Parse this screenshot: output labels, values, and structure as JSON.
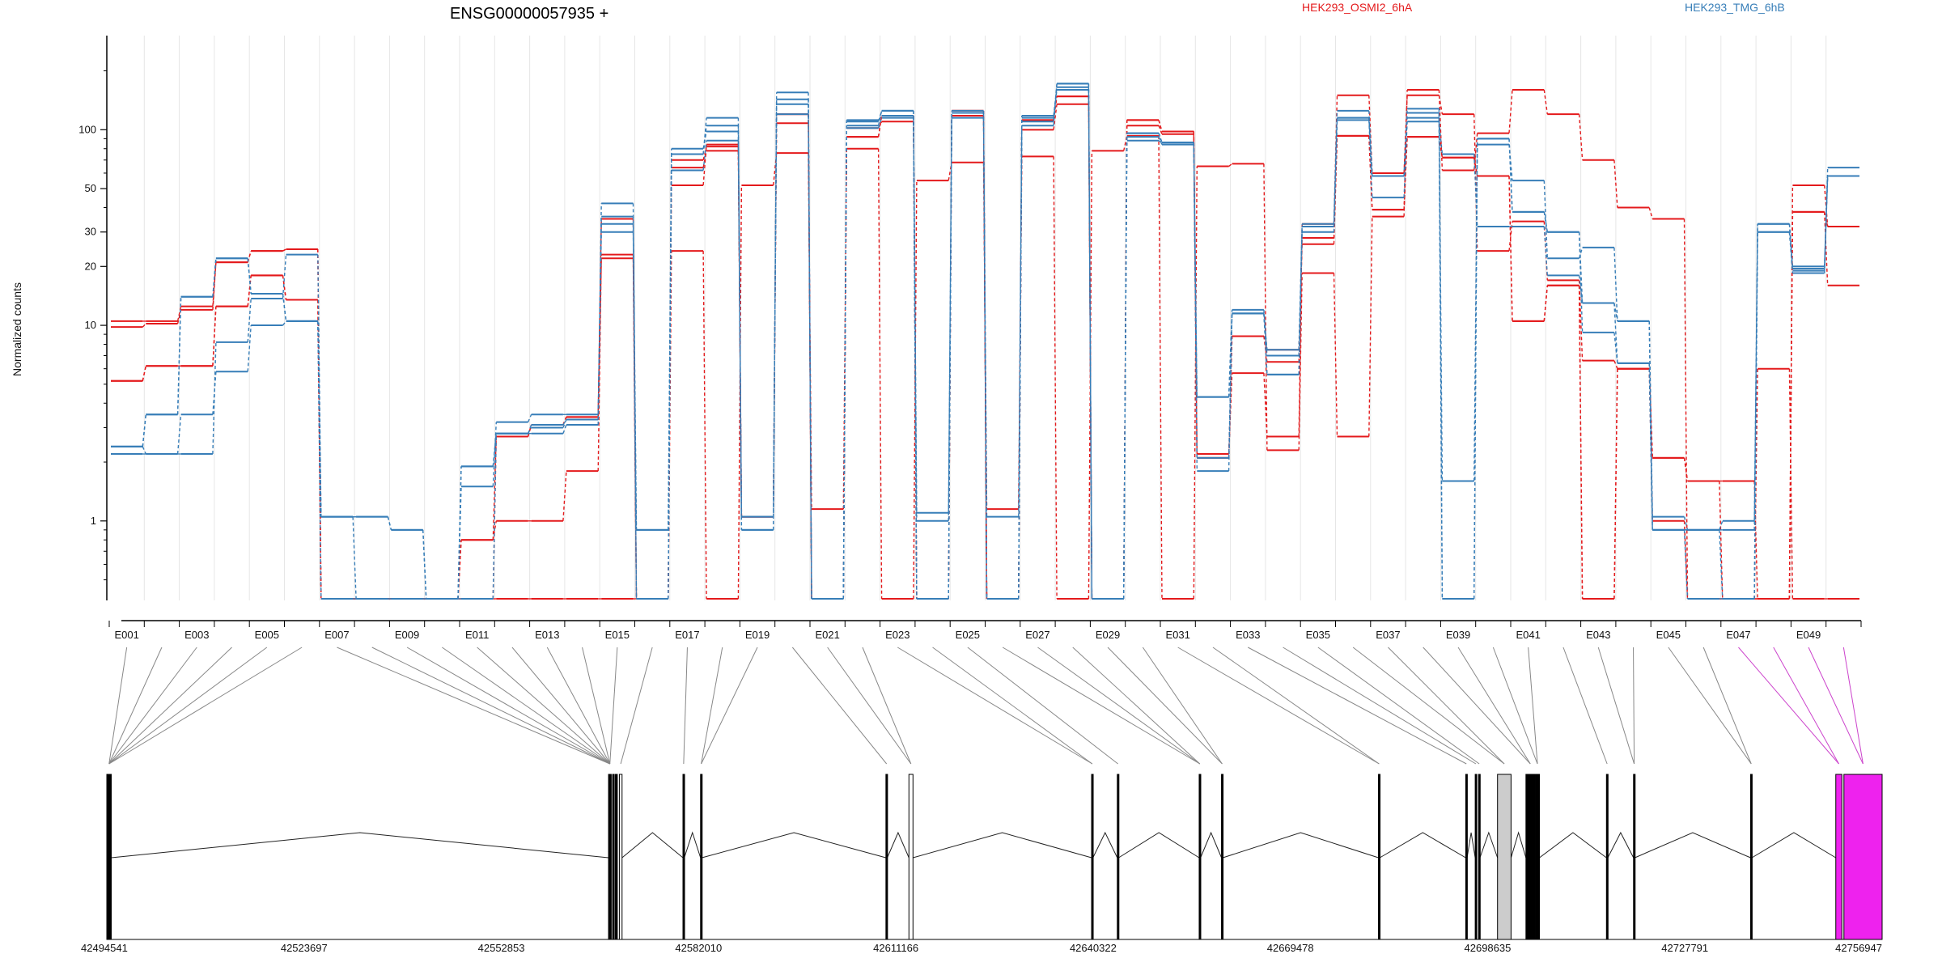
{
  "chart_data": {
    "type": "line",
    "title": "ENSG00000057935 +",
    "xlabel": "",
    "ylabel": "Normalized counts",
    "y_scale": "log",
    "ylim": [
      0.4,
      260
    ],
    "y_ticks": [
      {
        "value": 1,
        "label": "1"
      },
      {
        "value": 10,
        "label": "10"
      },
      {
        "value": 20,
        "label": "20"
      },
      {
        "value": 30,
        "label": "30"
      },
      {
        "value": 50,
        "label": "50"
      },
      {
        "value": 100,
        "label": "100"
      }
    ],
    "legend": [
      {
        "label": "HEK293_OSMI2_6hA",
        "color": "#e41a1c"
      },
      {
        "label": "HEK293_TMG_6hB",
        "color": "#377eb8"
      }
    ],
    "legend_placement": "top",
    "grid": "vertical, light",
    "exon_labels": [
      "E001",
      "E003",
      "E005",
      "E007",
      "E009",
      "E011",
      "E013",
      "E015",
      "E017",
      "E019",
      "E021",
      "E023",
      "E025",
      "E027",
      "E029",
      "E031",
      "E033",
      "E035",
      "E037",
      "E039",
      "E041",
      "E043",
      "E045",
      "E047",
      "E049"
    ],
    "exon_count": 50,
    "series": [
      {
        "group": "HEK293_OSMI2_6hA",
        "color": "#e41a1c",
        "values": [
          10.5,
          10.5,
          12.5,
          21,
          24,
          24.5,
          0.4,
          0.4,
          0.4,
          0.4,
          0.4,
          0.4,
          0.4,
          0.4,
          0.4,
          0.4,
          24,
          0.4,
          52,
          76,
          1.15,
          80,
          0.4,
          55,
          68,
          1.15,
          73,
          0.4,
          78,
          93,
          0.4,
          65,
          67,
          2.3,
          18.5,
          2.7,
          36,
          160,
          62,
          96,
          160,
          120,
          70,
          40,
          35,
          0.4,
          0.4,
          6,
          0.4,
          0.4
        ]
      },
      {
        "group": "HEK293_OSMI2_6hA",
        "color": "#e41a1c",
        "values": [
          5.2,
          6.2,
          6.2,
          12.5,
          18,
          13.5,
          0.4,
          0.4,
          0.4,
          0.4,
          0.8,
          2.7,
          3.1,
          3.4,
          22,
          0.4,
          64,
          78,
          1.05,
          108,
          0.4,
          92,
          118,
          0.4,
          125,
          0.4,
          112,
          148,
          0.4,
          112,
          98,
          2.1,
          8.8,
          7.5,
          26,
          93,
          39,
          92,
          72,
          58,
          10.5,
          16,
          0.4,
          6,
          2.1,
          1.6,
          1.6,
          0.4,
          38,
          16
        ]
      },
      {
        "group": "HEK293_OSMI2_6hA",
        "color": "#e41a1c",
        "values": [
          9.8,
          10.2,
          12,
          21,
          24,
          24.5,
          0.4,
          0.4,
          0.4,
          0.4,
          0.8,
          1,
          1,
          1.8,
          23,
          0.4,
          70,
          82,
          1.05,
          120,
          0.4,
          102,
          110,
          0.4,
          118,
          0.4,
          100,
          135,
          0.4,
          105,
          95,
          2.2,
          5.7,
          2.7,
          33,
          150,
          60,
          150,
          120,
          24,
          34,
          17,
          6.6,
          6,
          1,
          0.4,
          0.4,
          0.4,
          52,
          32
        ]
      },
      {
        "group": "HEK293_OSMI2_6hA",
        "color": "#e41a1c",
        "values": [
          5.2,
          6.2,
          6.2,
          12.5,
          18,
          13.5,
          0.4,
          0.4,
          0.4,
          0.4,
          0.4,
          2.7,
          3.1,
          3.4,
          35,
          0.4,
          52,
          84,
          1.05,
          120,
          0.4,
          92,
          118,
          0.4,
          125,
          0.4,
          112,
          148,
          0.4,
          112,
          98,
          2.1,
          8.8,
          6.5,
          28,
          93,
          39,
          92,
          72,
          58,
          10.5,
          16,
          0.4,
          6,
          2.1,
          1.6,
          0.4,
          0.4,
          38,
          32
        ]
      },
      {
        "group": "HEK293_TMG_6hB",
        "color": "#377eb8",
        "values": [
          2.4,
          2.2,
          2.2,
          8.2,
          13.7,
          23,
          1.05,
          1.05,
          0.9,
          0.4,
          0.4,
          2.8,
          3,
          3.3,
          30,
          0.9,
          80,
          98,
          0.9,
          155,
          0.4,
          102,
          115,
          1.0,
          122,
          0.4,
          110,
          172,
          0.4,
          88,
          86,
          1.8,
          11.5,
          7.5,
          30,
          112,
          45,
          110,
          75,
          32,
          32,
          18,
          13,
          6.4,
          0.9,
          0.9,
          1.0,
          33,
          20,
          58
        ]
      },
      {
        "group": "HEK293_TMG_6hB",
        "color": "#377eb8",
        "values": [
          2.2,
          2.2,
          3.5,
          5.8,
          10,
          10.5,
          1.05,
          1.05,
          0.9,
          0.4,
          1.5,
          3.2,
          3.5,
          3.5,
          36,
          0.9,
          62,
          88,
          1.05,
          120,
          0.4,
          110,
          125,
          1.1,
          115,
          0.4,
          115,
          160,
          0.4,
          92,
          84,
          4.3,
          12,
          7,
          33,
          125,
          58,
          128,
          1.6,
          84,
          55,
          22,
          25,
          10.5,
          1.05,
          0.9,
          0.9,
          30,
          18.5,
          58
        ]
      },
      {
        "group": "HEK293_TMG_6hB",
        "color": "#377eb8",
        "values": [
          2.4,
          3.5,
          14,
          22,
          14.5,
          10.5,
          1.05,
          0.4,
          0.4,
          0.4,
          1.9,
          2.8,
          2.8,
          3.1,
          42,
          0.4,
          75,
          105,
          0.9,
          135,
          0.4,
          105,
          125,
          0.4,
          125,
          1.05,
          105,
          172,
          0.4,
          96,
          86,
          4.3,
          11.5,
          5.6,
          32,
          115,
          58,
          115,
          0.4,
          90,
          38,
          30,
          13,
          10.5,
          0.9,
          0.9,
          0.4,
          33,
          19.5,
          64
        ]
      },
      {
        "group": "HEK293_TMG_6hB",
        "color": "#377eb8",
        "values": [
          2.4,
          3.5,
          14,
          22,
          14.5,
          10.5,
          0.4,
          0.4,
          0.4,
          0.4,
          1.9,
          2.8,
          3.1,
          3.3,
          33,
          0.4,
          75,
          115,
          1.05,
          143,
          0.4,
          112,
          118,
          0.4,
          122,
          0.4,
          118,
          165,
          0.4,
          96,
          86,
          2.1,
          11.5,
          5.6,
          32,
          115,
          58,
          122,
          0.4,
          90,
          38,
          30,
          9.2,
          6.4,
          0.9,
          0.4,
          0.4,
          30,
          19,
          58
        ]
      }
    ],
    "gene_model": {
      "start_position": "42494541",
      "end_position": "42756947",
      "position_ticks": [
        "42494541",
        "42523697",
        "42552853",
        "42582010",
        "42611166",
        "42640322",
        "42669478",
        "42698635",
        "42727791",
        "42756947"
      ],
      "exons": [
        {
          "start": 42494541,
          "end": 42495200,
          "color": "#000000"
        },
        {
          "start": 42568700,
          "end": 42569100,
          "color": "#000000"
        },
        {
          "start": 42569300,
          "end": 42569500,
          "color": "#000000"
        },
        {
          "start": 42569700,
          "end": 42570000,
          "color": "#000000"
        },
        {
          "start": 42570300,
          "end": 42570700,
          "color": "#ffffff"
        },
        {
          "start": 42579700,
          "end": 42579900,
          "color": "#000000"
        },
        {
          "start": 42582300,
          "end": 42582500,
          "color": "#000000"
        },
        {
          "start": 42609700,
          "end": 42609900,
          "color": "#000000"
        },
        {
          "start": 42613100,
          "end": 42613700,
          "color": "#ffffff"
        },
        {
          "start": 42640100,
          "end": 42640300,
          "color": "#000000"
        },
        {
          "start": 42643900,
          "end": 42644100,
          "color": "#000000"
        },
        {
          "start": 42656000,
          "end": 42656200,
          "color": "#000000"
        },
        {
          "start": 42659300,
          "end": 42659500,
          "color": "#000000"
        },
        {
          "start": 42682500,
          "end": 42682700,
          "color": "#000000"
        },
        {
          "start": 42695400,
          "end": 42695600,
          "color": "#000000"
        },
        {
          "start": 42696800,
          "end": 42697000,
          "color": "#000000"
        },
        {
          "start": 42697300,
          "end": 42697500,
          "color": "#000000"
        },
        {
          "start": 42700100,
          "end": 42702100,
          "color": "#cccccc"
        },
        {
          "start": 42704300,
          "end": 42705600,
          "color": "#000000"
        },
        {
          "start": 42705700,
          "end": 42706300,
          "color": "#000000"
        },
        {
          "start": 42716200,
          "end": 42716400,
          "color": "#000000"
        },
        {
          "start": 42720200,
          "end": 42720400,
          "color": "#000000"
        },
        {
          "start": 42737500,
          "end": 42737700,
          "color": "#000000"
        },
        {
          "start": 42750100,
          "end": 42751000,
          "color": "#ee22ee"
        },
        {
          "start": 42751300,
          "end": 42756947,
          "color": "#ee22ee"
        }
      ]
    }
  }
}
